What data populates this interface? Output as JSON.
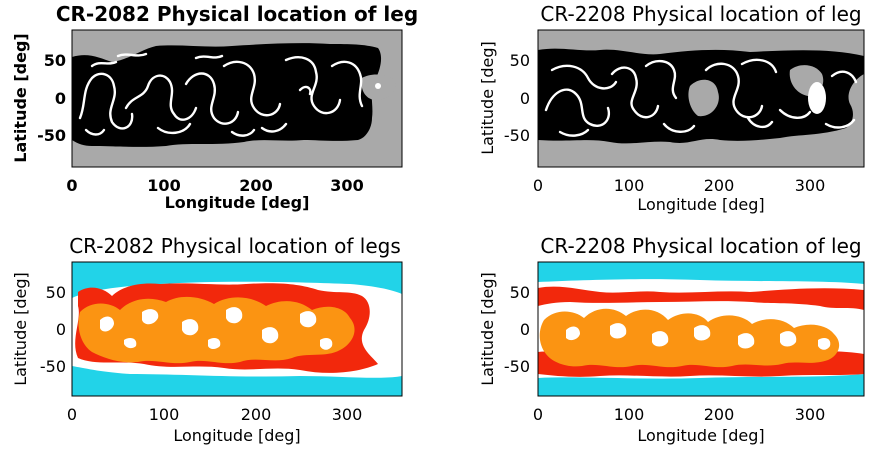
{
  "colors": {
    "gray_background": "#a9a9a9",
    "black_legs": "#000000",
    "white_open_field": "#ffffff",
    "cyan_background": "#22d3e8",
    "red_legs": "#f2280c",
    "orange_legs": "#fb9412"
  },
  "chart_data": [
    {
      "type": "heatmap",
      "title": "CR-2082 Physical location of leg",
      "xlabel": "Longitude [deg]",
      "ylabel": "Latitude [deg]",
      "xticks": [
        "0",
        "100",
        "200",
        "300"
      ],
      "yticks": [
        "50",
        "0",
        "-50"
      ],
      "xlim": [
        0,
        360
      ],
      "ylim": [
        -90,
        90
      ],
      "grid": false,
      "colormap": [
        "gray_background",
        "black_legs",
        "white_open_field"
      ]
    },
    {
      "type": "heatmap",
      "title": "CR-2208 Physical location of leg",
      "xlabel": "Longitude [deg]",
      "ylabel": "Latitude [deg]",
      "xticks": [
        "0",
        "100",
        "200",
        "300"
      ],
      "yticks": [
        "50",
        "0",
        "-50"
      ],
      "xlim": [
        0,
        360
      ],
      "ylim": [
        -90,
        90
      ],
      "grid": false,
      "colormap": [
        "gray_background",
        "black_legs",
        "white_open_field"
      ]
    },
    {
      "type": "heatmap",
      "title": "CR-2082 Physical location of legs",
      "xlabel": "Longitude [deg]",
      "ylabel": "Latitude [deg]",
      "xticks": [
        "0",
        "100",
        "200",
        "300"
      ],
      "yticks": [
        "50",
        "0",
        "-50"
      ],
      "xlim": [
        0,
        360
      ],
      "ylim": [
        -90,
        90
      ],
      "grid": false,
      "colormap": [
        "cyan_background",
        "red_legs",
        "orange_legs",
        "white_open_field"
      ]
    },
    {
      "type": "heatmap",
      "title": "CR-2208 Physical location of leg",
      "xlabel": "Longitude [deg]",
      "ylabel": "Latitude [deg]",
      "xticks": [
        "0",
        "100",
        "200",
        "300"
      ],
      "yticks": [
        "50",
        "0",
        "-50"
      ],
      "xlim": [
        0,
        360
      ],
      "ylim": [
        -90,
        90
      ],
      "grid": false,
      "colormap": [
        "cyan_background",
        "red_legs",
        "orange_legs",
        "white_open_field"
      ]
    }
  ]
}
